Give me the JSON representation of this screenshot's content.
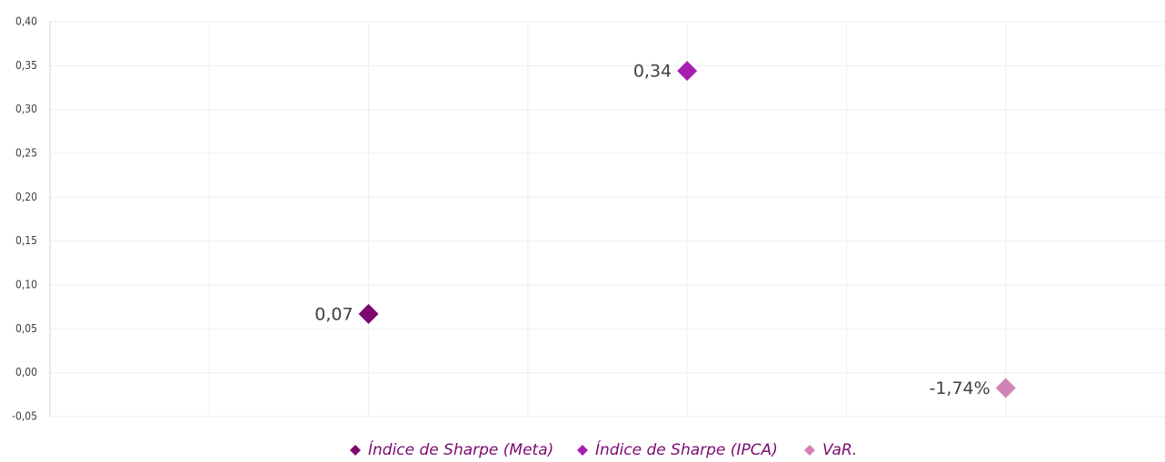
{
  "chart_data": {
    "type": "scatter",
    "series": [
      {
        "name": "Índice de Sharpe (Meta)",
        "color": "#7b0a70",
        "x": [
          2
        ],
        "values": [
          0.067
        ],
        "value_labels": [
          "0,07"
        ]
      },
      {
        "name": "Índice de Sharpe (IPCA)",
        "color": "#a81db0",
        "x": [
          4
        ],
        "values": [
          0.344
        ],
        "value_labels": [
          "0,34"
        ]
      },
      {
        "name": "VaR.",
        "color": "#d283b4",
        "x": [
          6
        ],
        "values": [
          -0.0174
        ],
        "value_labels": [
          "-1,74%"
        ]
      }
    ],
    "xlim": [
      0,
      7
    ],
    "xticks": [
      1,
      2,
      3,
      4,
      5,
      6
    ],
    "ylim": [
      -0.05,
      0.4
    ],
    "yticks": [
      {
        "value": -0.05,
        "label": "-0,05"
      },
      {
        "value": 0,
        "label": "0,00"
      },
      {
        "value": 0.05,
        "label": "0,05"
      },
      {
        "value": 0.1,
        "label": "0,10"
      },
      {
        "value": 0.15,
        "label": "0,15"
      },
      {
        "value": 0.2,
        "label": "0,20"
      },
      {
        "value": 0.25,
        "label": "0,25"
      },
      {
        "value": 0.3,
        "label": "0,30"
      },
      {
        "value": 0.35,
        "label": "0,35"
      },
      {
        "value": 0.4,
        "label": "0,40"
      }
    ],
    "grid": true,
    "legend": "bottom"
  }
}
